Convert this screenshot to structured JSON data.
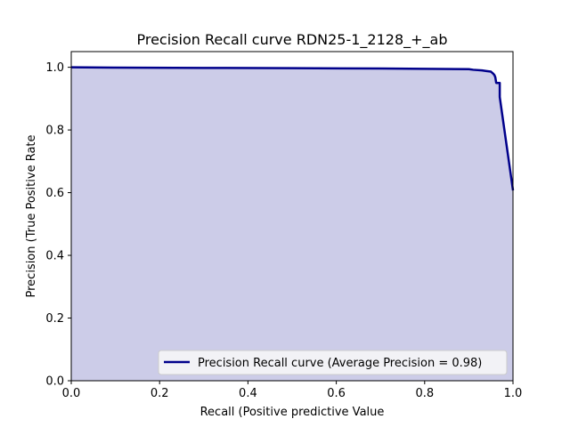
{
  "chart_data": {
    "type": "area",
    "title": "Precision Recall curve RDN25-1_2128_+_ab",
    "xlabel": "Recall (Positive predictive Value",
    "ylabel": "Precision (True Positive Rate",
    "xlim": [
      0.0,
      1.0
    ],
    "ylim": [
      0.0,
      1.05
    ],
    "xticks": [
      "0.0",
      "0.2",
      "0.4",
      "0.6",
      "0.8",
      "1.0"
    ],
    "yticks": [
      "0.0",
      "0.2",
      "0.4",
      "0.6",
      "0.8",
      "1.0"
    ],
    "grid": false,
    "legend_position": "lower-right",
    "colors": {
      "line": "#00008b",
      "fill": "#cccce8",
      "legend_bg": "#f2f2f6"
    },
    "series": [
      {
        "name": "Precision Recall curve (Average Precision = 0.98)",
        "x": [
          0.0,
          0.1,
          0.3,
          0.5,
          0.7,
          0.9,
          0.91,
          0.93,
          0.94,
          0.95,
          0.955,
          0.958,
          0.96,
          0.962,
          0.963,
          0.97,
          0.97,
          1.0
        ],
        "y": [
          1.0,
          0.999,
          0.998,
          0.997,
          0.996,
          0.994,
          0.992,
          0.99,
          0.988,
          0.986,
          0.98,
          0.975,
          0.968,
          0.95,
          0.95,
          0.95,
          0.905,
          0.607
        ]
      }
    ]
  }
}
